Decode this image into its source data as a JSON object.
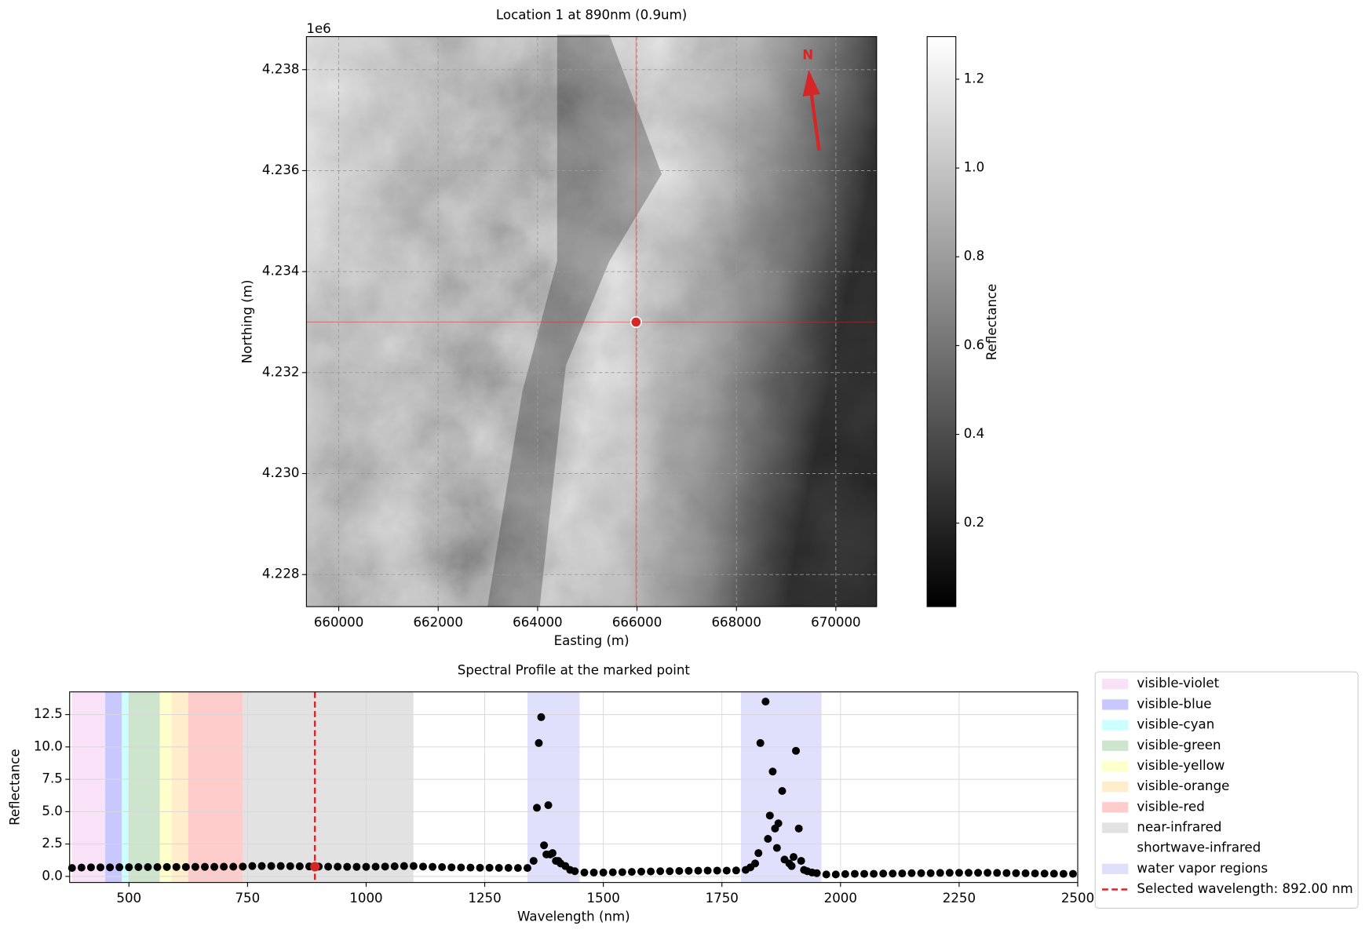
{
  "chart_data": [
    {
      "type": "image",
      "title": "Location 1 at 890nm (0.9um)",
      "x_label": "Easting (m)",
      "y_label": "Northing (m)",
      "y_offset_label": "1e6",
      "xlim": [
        659350,
        670820
      ],
      "ylim": [
        4227365,
        4238655
      ],
      "xticks": [
        660000,
        662000,
        664000,
        666000,
        668000,
        670000
      ],
      "yticks": [
        {
          "value": 4228000,
          "label": "4.228"
        },
        {
          "value": 4230000,
          "label": "4.230"
        },
        {
          "value": 4232000,
          "label": "4.232"
        },
        {
          "value": 4234000,
          "label": "4.234"
        },
        {
          "value": 4236000,
          "label": "4.236"
        },
        {
          "value": 4238000,
          "label": "4.238"
        }
      ],
      "grid": true,
      "marker": {
        "x": 665980,
        "y": 4233000,
        "color": "#d62728"
      },
      "north_label": "N",
      "colorbar": {
        "label": "Reflectance",
        "lim": [
          0.012,
          1.296
        ],
        "ticks": [
          0.2,
          0.4,
          0.6,
          0.8,
          {
            "value": 1,
            "label": "1.0"
          },
          1.2
        ]
      }
    },
    {
      "type": "scatter",
      "title": "Spectral Profile at the marked point",
      "x_label": "Wavelength (nm)",
      "y_label": "Reflectance",
      "xlim": [
        375,
        2500
      ],
      "ylim": [
        -0.47,
        14.25
      ],
      "xticks": [
        500,
        750,
        1000,
        1250,
        1500,
        1750,
        2000,
        2250,
        2500
      ],
      "yticks": [
        {
          "value": 0,
          "label": "0.0"
        },
        2.5,
        {
          "value": 5,
          "label": "5.0"
        },
        7.5,
        {
          "value": 10,
          "label": "10.0"
        },
        12.5
      ],
      "grid": true,
      "color": "#000000",
      "legend": "right",
      "x": [
        380,
        400,
        420,
        440,
        460,
        480,
        500,
        520,
        540,
        560,
        580,
        600,
        620,
        640,
        660,
        680,
        700,
        720,
        740,
        760,
        780,
        800,
        820,
        840,
        860,
        880,
        900,
        920,
        940,
        960,
        980,
        1000,
        1020,
        1040,
        1060,
        1080,
        1100,
        1120,
        1140,
        1160,
        1180,
        1200,
        1220,
        1240,
        1260,
        1280,
        1300,
        1320,
        1340,
        1353,
        1360,
        1364,
        1369,
        1375,
        1380,
        1384,
        1388,
        1393,
        1400,
        1405,
        1410,
        1420,
        1430,
        1440,
        1460,
        1480,
        1500,
        1520,
        1540,
        1560,
        1580,
        1600,
        1620,
        1640,
        1660,
        1680,
        1700,
        1720,
        1740,
        1760,
        1780,
        1800,
        1810,
        1820,
        1827,
        1831,
        1842,
        1847,
        1851,
        1857,
        1862,
        1866,
        1869,
        1877,
        1882,
        1892,
        1897,
        1901,
        1906,
        1912,
        1917,
        1923,
        1930,
        1940,
        1950,
        1970,
        1990,
        2010,
        2030,
        2050,
        2070,
        2090,
        2110,
        2130,
        2150,
        2170,
        2190,
        2210,
        2230,
        2250,
        2270,
        2290,
        2310,
        2330,
        2350,
        2370,
        2390,
        2410,
        2430,
        2450,
        2470,
        2490
      ],
      "values": [
        0.65,
        0.68,
        0.7,
        0.7,
        0.7,
        0.71,
        0.71,
        0.72,
        0.72,
        0.72,
        0.73,
        0.73,
        0.73,
        0.74,
        0.74,
        0.74,
        0.75,
        0.75,
        0.76,
        0.8,
        0.8,
        0.8,
        0.8,
        0.79,
        0.78,
        0.77,
        0.76,
        0.75,
        0.75,
        0.74,
        0.74,
        0.74,
        0.75,
        0.76,
        0.78,
        0.8,
        0.8,
        0.76,
        0.74,
        0.72,
        0.7,
        0.69,
        0.68,
        0.67,
        0.67,
        0.66,
        0.66,
        0.65,
        0.65,
        1.2,
        5.3,
        10.3,
        12.3,
        2.4,
        1.7,
        5.5,
        1.7,
        1.8,
        1.2,
        1.2,
        1.0,
        0.8,
        0.5,
        0.4,
        0.3,
        0.3,
        0.3,
        0.32,
        0.33,
        0.35,
        0.37,
        0.38,
        0.4,
        0.4,
        0.42,
        0.43,
        0.44,
        0.45,
        0.45,
        0.45,
        0.46,
        0.5,
        0.7,
        1.0,
        1.8,
        10.3,
        13.5,
        2.9,
        4.7,
        8.1,
        3.7,
        2.2,
        4.1,
        6.6,
        1.3,
        1.0,
        0.8,
        1.5,
        9.7,
        3.7,
        1.2,
        0.5,
        0.4,
        0.3,
        0.25,
        0.15,
        0.15,
        0.18,
        0.2,
        0.2,
        0.2,
        0.22,
        0.22,
        0.23,
        0.25,
        0.25,
        0.25,
        0.27,
        0.28,
        0.28,
        0.28,
        0.28,
        0.28,
        0.27,
        0.26,
        0.25,
        0.24,
        0.23,
        0.22,
        0.21,
        0.2,
        0.2
      ],
      "bands": [
        {
          "name": "visible-violet",
          "color": "#f9e1f8",
          "ranges": [
            [
              380,
              450
            ]
          ]
        },
        {
          "name": "visible-blue",
          "color": "#c8c8ff",
          "ranges": [
            [
              450,
              485
            ]
          ]
        },
        {
          "name": "visible-cyan",
          "color": "#ccffff",
          "ranges": [
            [
              485,
              500
            ]
          ]
        },
        {
          "name": "visible-green",
          "color": "#cce5cc",
          "ranges": [
            [
              500,
              565
            ]
          ]
        },
        {
          "name": "visible-yellow",
          "color": "#ffffcc",
          "ranges": [
            [
              565,
              590
            ]
          ]
        },
        {
          "name": "visible-orange",
          "color": "#ffedcc",
          "ranges": [
            [
              590,
              625
            ]
          ]
        },
        {
          "name": "visible-red",
          "color": "#ffcccc",
          "ranges": [
            [
              625,
              740
            ]
          ]
        },
        {
          "name": "near-infrared",
          "color": "#e2e2e2",
          "ranges": [
            [
              740,
              1100
            ]
          ]
        },
        {
          "name": "shortwave-infrared",
          "color": "#ffffff",
          "ranges": [
            [
              1100,
              2500
            ]
          ]
        },
        {
          "name": "water vapor regions",
          "color": "#e0e0fd",
          "ranges": [
            [
              1340,
              1450
            ],
            [
              1790,
              1960
            ]
          ]
        }
      ],
      "selected": {
        "name": "Selected wavelength: 892.00 nm",
        "x": 892,
        "value": 0.75,
        "color": "#d62728"
      }
    }
  ]
}
